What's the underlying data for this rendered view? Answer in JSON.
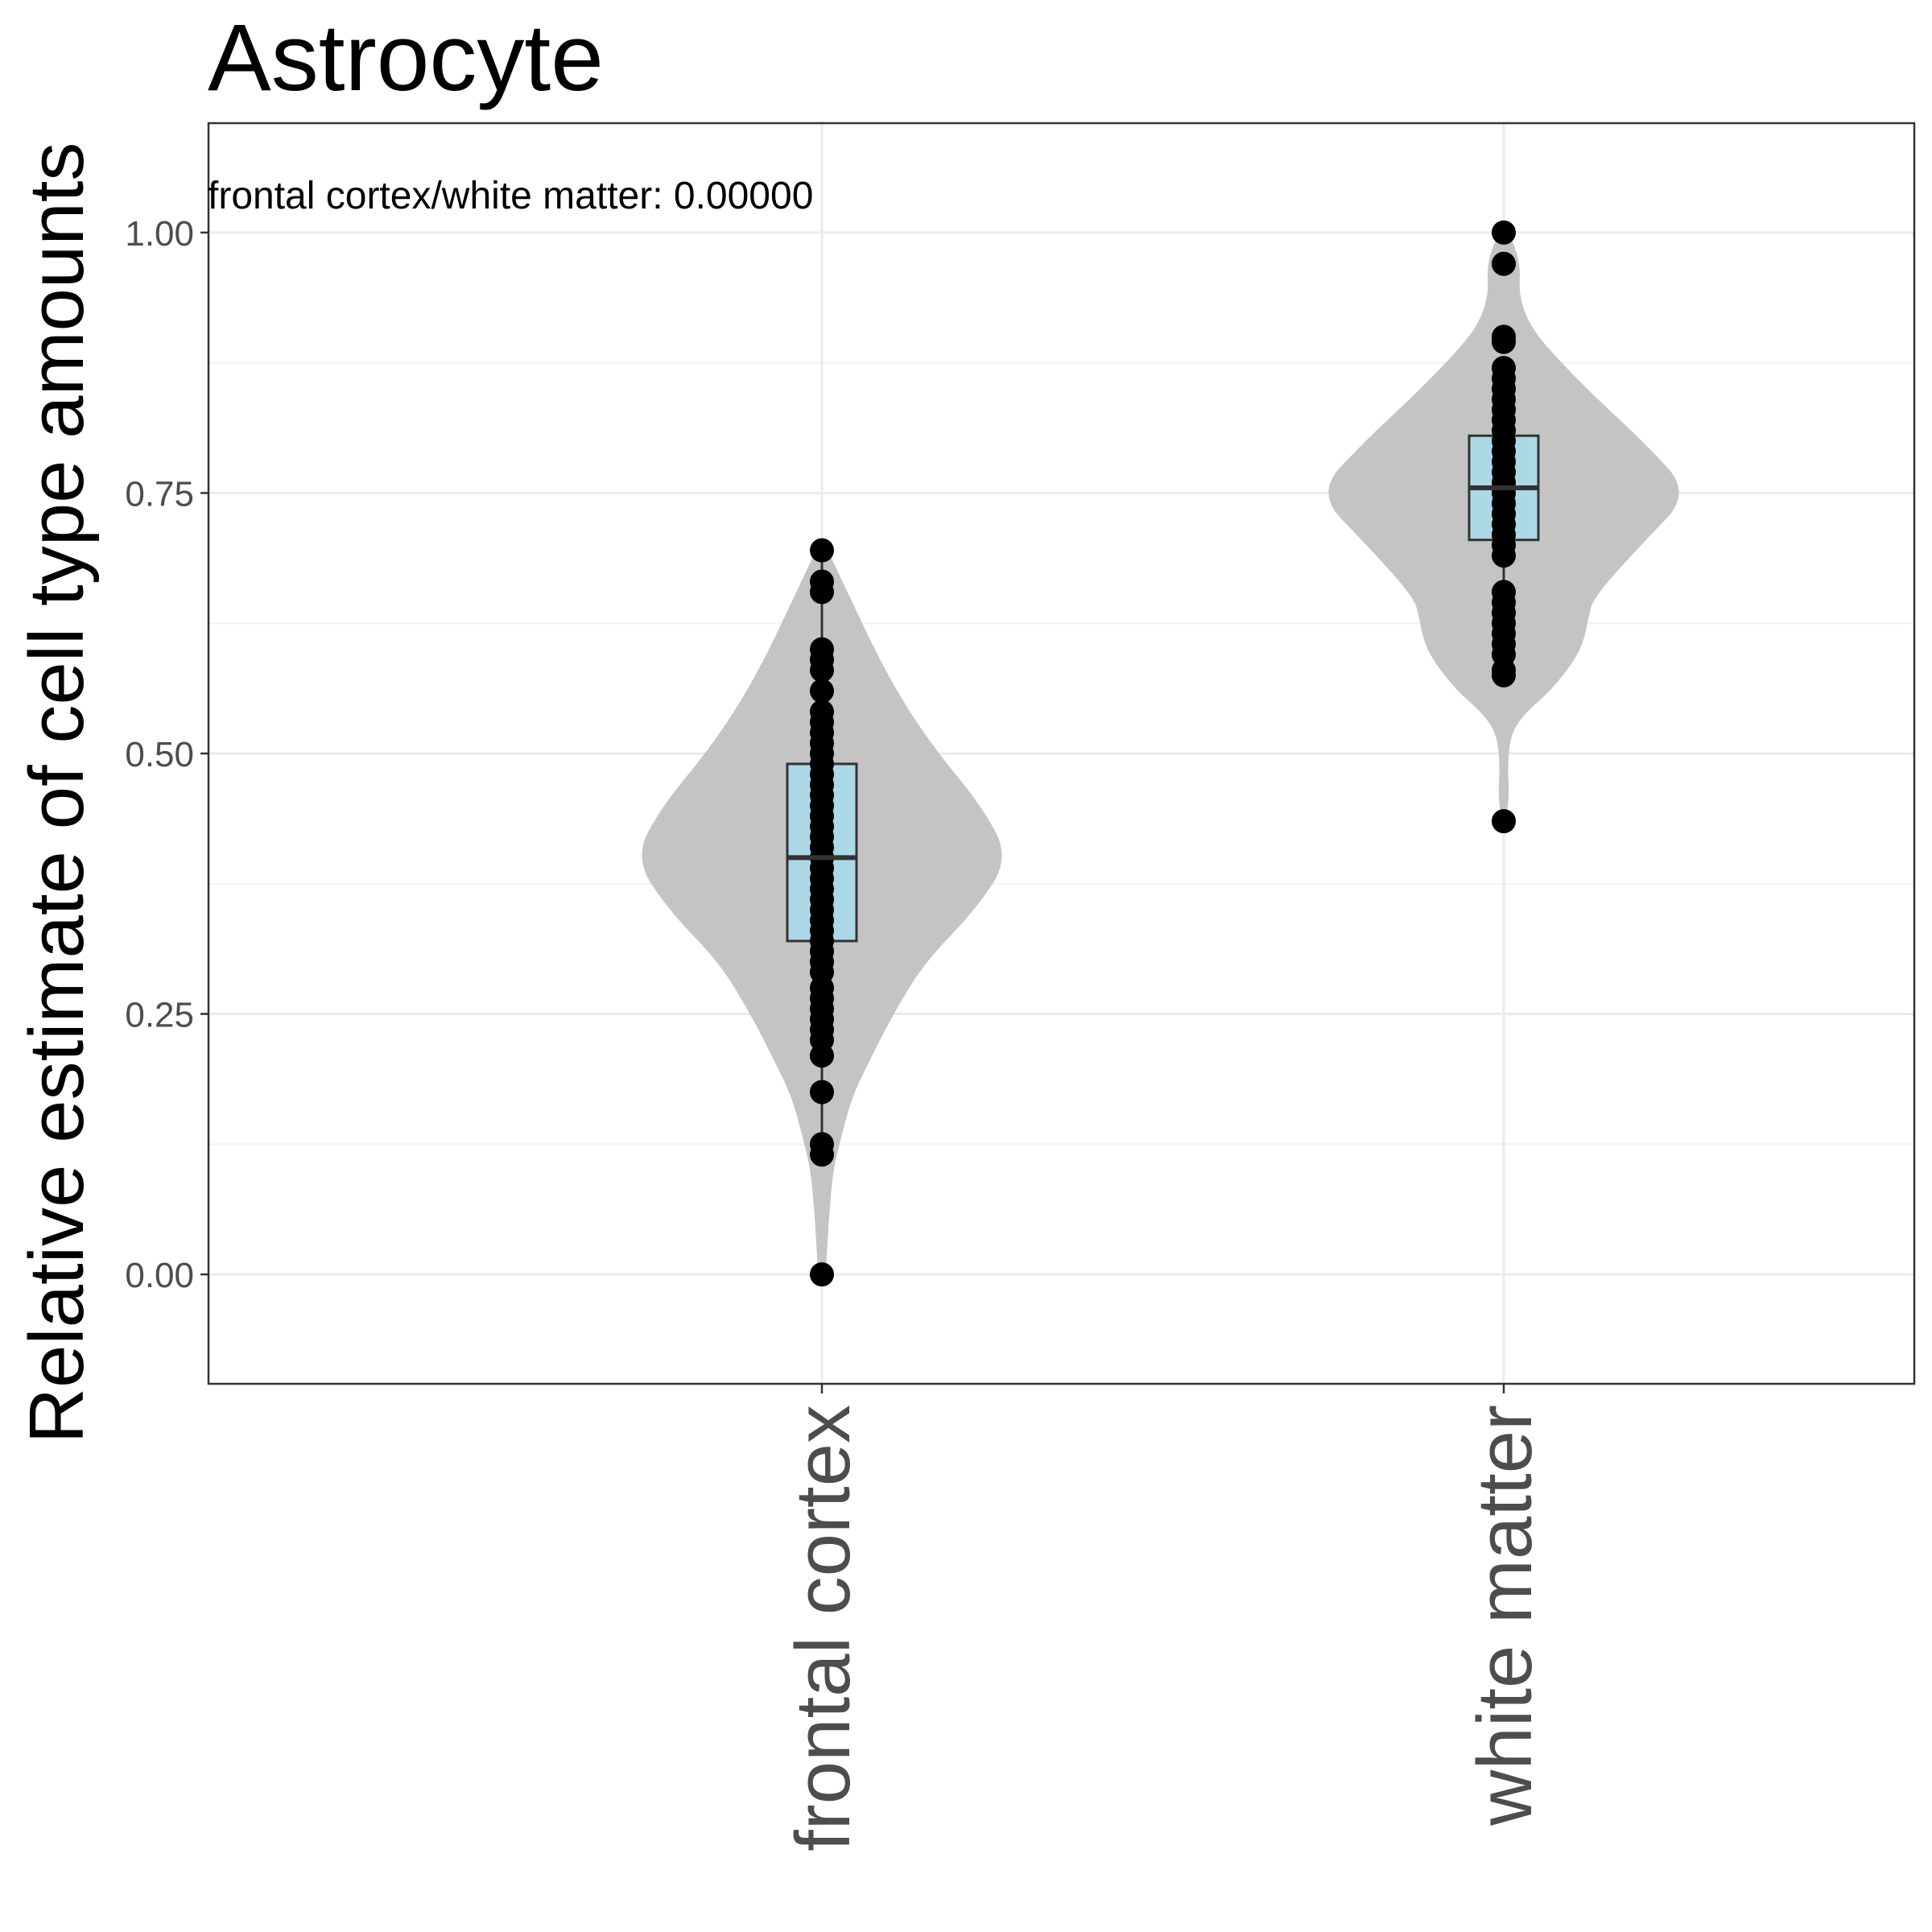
{
  "chart_data": {
    "type": "violin",
    "title": "Astrocyte",
    "xlabel": "",
    "ylabel": "Relative estimate of cell type amounts",
    "ylim": [
      -0.105,
      1.105
    ],
    "yticks": [
      "0.00",
      "0.25",
      "0.50",
      "0.75",
      "1.00"
    ],
    "ytick_values": [
      0,
      0.25,
      0.5,
      0.75,
      1.0
    ],
    "grid": true,
    "categories": [
      "frontal cortex",
      "white matter"
    ],
    "annotation": "frontal cortex/white matter: 0.00000",
    "violin_fill": "#c4c4c4",
    "box_fill": "#add8e6",
    "point_color": "#000000",
    "groups": [
      {
        "category": "frontal cortex",
        "box": {
          "q1": 0.32,
          "median": 0.4,
          "q3": 0.49,
          "whisker_low": 0.115,
          "whisker_high": 0.695
        },
        "density": [
          [
            0.0,
            0.02
          ],
          [
            0.03,
            0.03
          ],
          [
            0.06,
            0.04
          ],
          [
            0.1,
            0.06
          ],
          [
            0.13,
            0.1
          ],
          [
            0.17,
            0.16
          ],
          [
            0.2,
            0.24
          ],
          [
            0.25,
            0.38
          ],
          [
            0.3,
            0.55
          ],
          [
            0.35,
            0.82
          ],
          [
            0.4,
            1.0
          ],
          [
            0.45,
            0.85
          ],
          [
            0.5,
            0.62
          ],
          [
            0.55,
            0.43
          ],
          [
            0.6,
            0.28
          ],
          [
            0.65,
            0.15
          ],
          [
            0.68,
            0.07
          ],
          [
            0.7,
            0.02
          ]
        ],
        "points": [
          0.0,
          0.115,
          0.125,
          0.175,
          0.21,
          0.225,
          0.235,
          0.245,
          0.255,
          0.265,
          0.275,
          0.29,
          0.3,
          0.31,
          0.32,
          0.33,
          0.34,
          0.35,
          0.36,
          0.37,
          0.38,
          0.39,
          0.4,
          0.41,
          0.42,
          0.43,
          0.44,
          0.45,
          0.46,
          0.47,
          0.48,
          0.49,
          0.5,
          0.51,
          0.52,
          0.53,
          0.54,
          0.56,
          0.58,
          0.59,
          0.6,
          0.655,
          0.665,
          0.695
        ]
      },
      {
        "category": "white matter",
        "box": {
          "q1": 0.705,
          "median": 0.755,
          "q3": 0.805,
          "whisker_low": 0.575,
          "whisker_high": 0.87
        },
        "density": [
          [
            0.435,
            0.01
          ],
          [
            0.46,
            0.03
          ],
          [
            0.49,
            0.02
          ],
          [
            0.52,
            0.04
          ],
          [
            0.54,
            0.12
          ],
          [
            0.56,
            0.25
          ],
          [
            0.59,
            0.38
          ],
          [
            0.61,
            0.43
          ],
          [
            0.63,
            0.45
          ],
          [
            0.65,
            0.48
          ],
          [
            0.7,
            0.73
          ],
          [
            0.75,
            1.0
          ],
          [
            0.8,
            0.74
          ],
          [
            0.84,
            0.5
          ],
          [
            0.88,
            0.28
          ],
          [
            0.91,
            0.14
          ],
          [
            0.94,
            0.08
          ],
          [
            0.97,
            0.09
          ],
          [
            1.0,
            0.03
          ]
        ],
        "points": [
          0.435,
          0.575,
          0.58,
          0.595,
          0.605,
          0.615,
          0.625,
          0.635,
          0.645,
          0.655,
          0.69,
          0.7,
          0.71,
          0.72,
          0.73,
          0.74,
          0.75,
          0.76,
          0.77,
          0.78,
          0.79,
          0.8,
          0.81,
          0.82,
          0.83,
          0.84,
          0.85,
          0.86,
          0.87,
          0.895,
          0.9,
          0.97,
          1.0
        ]
      }
    ]
  }
}
